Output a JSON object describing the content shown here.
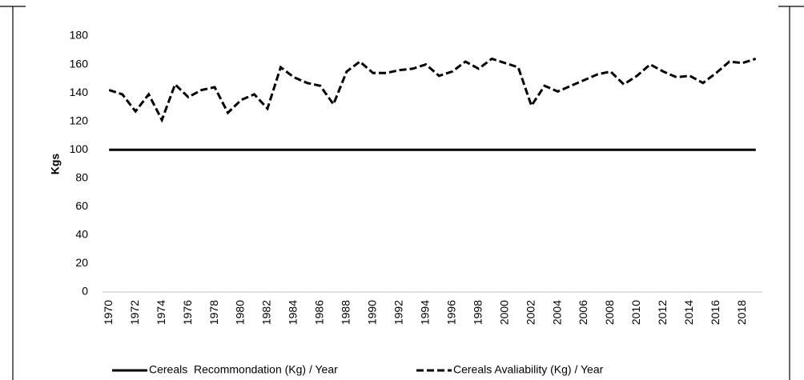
{
  "chart_data": {
    "type": "line",
    "y_label": "Kgs",
    "categories": [
      "1970",
      null,
      "1972",
      null,
      "1974",
      null,
      "1976",
      null,
      "1978",
      null,
      "1980",
      null,
      "1982",
      null,
      "1984",
      null,
      "1986",
      null,
      "1988",
      null,
      "1990",
      null,
      "1992",
      null,
      "1994",
      null,
      "1996",
      null,
      "1998",
      null,
      "2000",
      null,
      "2002",
      null,
      "2004",
      null,
      "2006",
      null,
      "2008",
      null,
      "2010",
      null,
      "2012",
      null,
      "2014",
      null,
      "2016",
      null,
      "2018",
      null
    ],
    "series": [
      {
        "name": "Cereals  Recommondation (Kg) / Year",
        "color": "#000000",
        "dash": "solid",
        "values": [
          100,
          100,
          100,
          100,
          100,
          100,
          100,
          100,
          100,
          100,
          100,
          100,
          100,
          100,
          100,
          100,
          100,
          100,
          100,
          100,
          100,
          100,
          100,
          100,
          100,
          100,
          100,
          100,
          100,
          100,
          100,
          100,
          100,
          100,
          100,
          100,
          100,
          100,
          100,
          100,
          100,
          100,
          100,
          100,
          100,
          100,
          100,
          100,
          100,
          100
        ]
      },
      {
        "name": "Cereals Avaliability (Kg) / Year",
        "color": "#000000",
        "dash": "dashed",
        "values": [
          142,
          139,
          127,
          139,
          121,
          146,
          137,
          142,
          144,
          126,
          135,
          139,
          129,
          158,
          151,
          147,
          145,
          132,
          155,
          162,
          154,
          154,
          156,
          157,
          160,
          152,
          155,
          162,
          157,
          164,
          161,
          158,
          131,
          145,
          141,
          145,
          149,
          153,
          155,
          146,
          152,
          160,
          155,
          151,
          152,
          147,
          154,
          162,
          161,
          164
        ]
      }
    ],
    "ylim": [
      0,
      180
    ],
    "yticks": [
      0,
      20,
      40,
      60,
      80,
      100,
      120,
      140,
      160,
      180
    ],
    "grid": false,
    "legend": "bottom"
  }
}
